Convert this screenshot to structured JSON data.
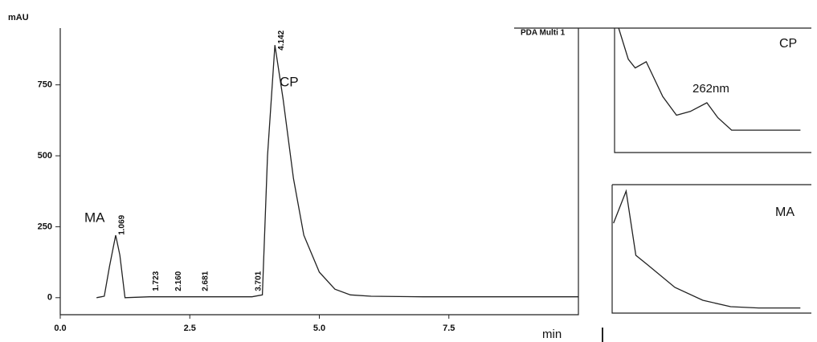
{
  "chart_data": [
    {
      "type": "line",
      "y_label": "mAU",
      "x_label": "min",
      "legend_text": "PDA Multi 1",
      "annotations": [
        "MA",
        "CP"
      ],
      "peak_labels": [
        "1.069",
        "1.723",
        "2.160",
        "2.681",
        "3.701",
        "4.142"
      ],
      "x": [
        0.7,
        0.85,
        0.95,
        1.069,
        1.15,
        1.25,
        1.723,
        2.16,
        2.681,
        3.701,
        3.9,
        4.0,
        4.142,
        4.3,
        4.5,
        4.7,
        5.0,
        5.3,
        5.6,
        6.0,
        7.0,
        10.0
      ],
      "series": [
        {
          "color": "#222222",
          "values": [
            0,
            5,
            110,
            220,
            150,
            0,
            3,
            3,
            3,
            3,
            10,
            500,
            890,
            700,
            420,
            220,
            90,
            30,
            10,
            5,
            3,
            3
          ]
        }
      ],
      "xlim": [
        0,
        10
      ],
      "ylim": [
        -60,
        950
      ],
      "xticks": [
        {
          "value": 0,
          "label": "0.0"
        },
        {
          "value": 2.5,
          "label": "2.5"
        },
        {
          "value": 5,
          "label": "5.0"
        },
        {
          "value": 7.5,
          "label": "7.5"
        }
      ],
      "yticks": [
        0,
        250,
        500,
        750
      ]
    },
    {
      "type": "line",
      "title": "CP",
      "annotation": "262nm",
      "x": [
        198,
        205,
        210,
        218,
        230,
        240,
        250,
        262,
        270,
        280,
        300,
        330
      ],
      "series": [
        {
          "color": "#222222",
          "values": [
            100,
            75,
            68,
            73,
            45,
            30,
            33,
            40,
            28,
            18,
            18,
            18
          ]
        }
      ],
      "xlim": [
        195,
        335
      ],
      "ylim": [
        0,
        100
      ]
    },
    {
      "type": "line",
      "title": "MA",
      "x": [
        196,
        205,
        212,
        220,
        240,
        260,
        280,
        300,
        330
      ],
      "series": [
        {
          "color": "#222222",
          "values": [
            70,
            95,
            45,
            38,
            20,
            10,
            5,
            4,
            4
          ]
        }
      ],
      "xlim": [
        195,
        335
      ],
      "ylim": [
        0,
        100
      ]
    }
  ]
}
